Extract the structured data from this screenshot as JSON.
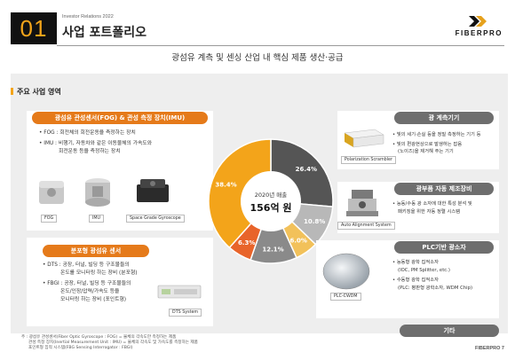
{
  "header": {
    "number": "01",
    "subtitle": "Investor Relations 2022",
    "title": "사업 포트폴리오",
    "logo_text": "FIBERPRO",
    "tagline": "광섬유 계측 및 센싱 산업 내 핵심 제품 생산·공급"
  },
  "panel": {
    "heading": "주요 사업 영역"
  },
  "fog_card": {
    "title": "광섬유 관성센서(FOG) & 관성 측정 장치(IMU)",
    "bullets": [
      "FOG : 회전체의 회전운동을 측정하는 장치",
      "IMU : 비행기, 자동차와 같은 이동물체의 가속도와",
      "회전운동 등을 측정하는 장치"
    ],
    "captions": [
      "FOG",
      "IMU",
      "Space Grade Gyroscope"
    ]
  },
  "dts_card": {
    "title": "분포형 광섬유 센서",
    "bullets": [
      "DTS : 공장, 터널, 빌딩 등 구조물들의",
      "온도를 모니터링 하는 장비 (분포형)",
      "FBGI : 공장, 터널, 빌딩 등 구조물들의",
      "온도/인장/압력/가속도 등을",
      "모니터링 하는 장비 (포인트형)"
    ],
    "caption": "DTS  System"
  },
  "meas_card": {
    "title": "광 계측기기",
    "bullets": [
      "빛의 세기·손실 등을 정밀 측정하는 기기 등",
      "빛의 편광현상으로 발생하는 잡음",
      "(노이즈)을 제거해 주는 기기"
    ],
    "caption": "Polarization Scrambler"
  },
  "align_card": {
    "title": "광부품 자동 제조장비",
    "bullets": [
      "능동/수동 광 소자에 대한 특성 분석 및",
      "패키징을 위한 자동 정렬 시스템"
    ],
    "caption": "Auto Alignment System"
  },
  "plc_card": {
    "title": "PLC기반 광소자",
    "bullets": [
      "능동형 광학 집적소자",
      "(IOC, PM Splitter, etc.)",
      "수동형 광학 집적소자",
      "(PLC: 평판형 광학소자, WDM Chip)"
    ],
    "caption": "PLC-CWDM"
  },
  "donut": {
    "center_line1": "2020년 매출",
    "center_line2": "156억 원"
  },
  "other_button": "기타",
  "footnotes": [
    "주 : 광섬유 관성센서(Fiber Optic Gyroscope : FOG) = 물체의 각속도만 측정하는 제품",
    "관성 측정 장치(Inertial Measurement Unit : IMU) = 물체의 각속도 및 가속도를 측정하는 제품",
    "포인트형 집적 시스템(FBG Sensing Interrogator : FBGI)"
  ],
  "page_no": "FIBERPRO 7",
  "chart_data": {
    "type": "pie",
    "title": "",
    "slices": [
      {
        "label": "광 계측기기",
        "value": 26.4,
        "display": "26.4%",
        "color": "#555555"
      },
      {
        "label": "광부품 자동 제조장비",
        "value": 10.8,
        "display": "10.8%",
        "color": "#b8b8b8"
      },
      {
        "label": "PLC기반 광소자",
        "value": 6.0,
        "display": "6.0%",
        "color": "#f2c15a"
      },
      {
        "label": "기타",
        "value": 12.1,
        "display": "12.1%",
        "color": "#8a8a8a"
      },
      {
        "label": "분포형 광섬유 센서",
        "value": 6.3,
        "display": "6.3%",
        "color": "#e8642a"
      },
      {
        "label": "광섬유 관성센서(FOG) & 관성 측정 장치(IMU)",
        "value": 38.4,
        "display": "38.4%",
        "color": "#f3a41a"
      }
    ],
    "colors": {
      "accent": "#f3a41a",
      "accent_dark": "#e57a1a",
      "gray_pill": "#6e6e6e"
    }
  }
}
